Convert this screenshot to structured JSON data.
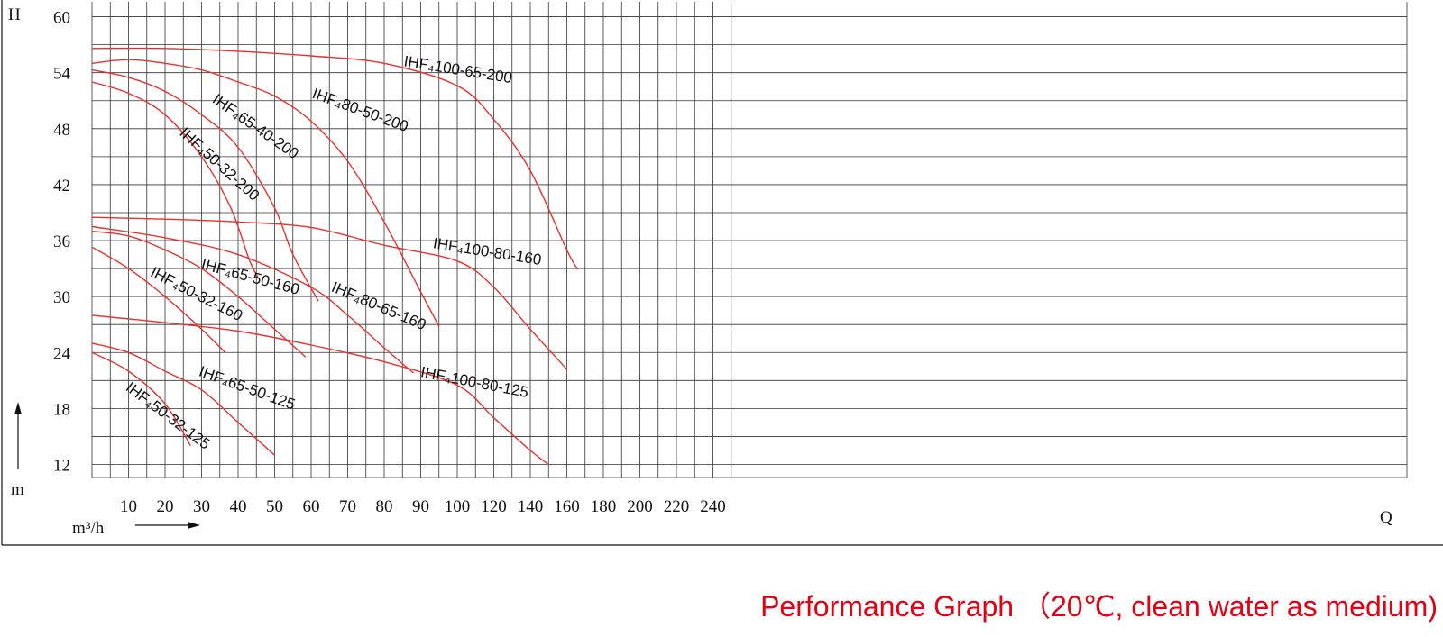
{
  "caption": "Performance Graph （20℃, clean water as medium)",
  "chart_data": {
    "type": "line",
    "y_axis": {
      "label_top": "H",
      "unit": "m",
      "range": [
        10.6,
        61.6
      ],
      "ticks": [
        12,
        18,
        24,
        30,
        36,
        42,
        48,
        54,
        60
      ]
    },
    "x_axis": {
      "label": "Q",
      "unit": "m³/h",
      "segments": [
        {
          "from": 0,
          "to": 100,
          "step": 10
        },
        {
          "from": 100,
          "to": 250,
          "step": 20
        }
      ],
      "ticks": [
        10,
        20,
        30,
        40,
        50,
        60,
        70,
        80,
        90,
        100,
        120,
        140,
        160,
        180,
        200,
        220,
        240
      ]
    },
    "grid": true,
    "series": [
      {
        "name": "IHF₄100-65-200",
        "points": [
          [
            0,
            56.6
          ],
          [
            20,
            56.6
          ],
          [
            40,
            56.3
          ],
          [
            60,
            55.8
          ],
          [
            80,
            55.0
          ],
          [
            100,
            52.6
          ],
          [
            120,
            49.0
          ],
          [
            140,
            43.5
          ],
          [
            160,
            35.0
          ],
          [
            166,
            32.9
          ]
        ]
      },
      {
        "name": "IHF₄80-50-200",
        "points": [
          [
            0,
            55.0
          ],
          [
            10,
            55.4
          ],
          [
            20,
            55.0
          ],
          [
            30,
            54.3
          ],
          [
            40,
            53.0
          ],
          [
            50,
            51.5
          ],
          [
            60,
            48.8
          ],
          [
            70,
            44.5
          ],
          [
            80,
            38.0
          ],
          [
            90,
            30.5
          ],
          [
            95,
            26.8
          ]
        ]
      },
      {
        "name": "IHF₄65-40-200",
        "points": [
          [
            0,
            54.3
          ],
          [
            10,
            53.5
          ],
          [
            20,
            52.0
          ],
          [
            30,
            49.5
          ],
          [
            40,
            46.0
          ],
          [
            50,
            39.5
          ],
          [
            55,
            34.5
          ],
          [
            62,
            29.5
          ]
        ]
      },
      {
        "name": "IHF₄50-32-200",
        "points": [
          [
            0,
            53.0
          ],
          [
            10,
            51.8
          ],
          [
            20,
            49.5
          ],
          [
            30,
            45.0
          ],
          [
            38,
            39.5
          ],
          [
            43,
            34.0
          ],
          [
            45.5,
            32.0
          ]
        ]
      },
      {
        "name": "IHF₄100-80-160",
        "points": [
          [
            0,
            38.5
          ],
          [
            20,
            38.3
          ],
          [
            40,
            38.0
          ],
          [
            60,
            37.4
          ],
          [
            80,
            35.5
          ],
          [
            100,
            33.8
          ],
          [
            120,
            31.0
          ],
          [
            140,
            26.5
          ],
          [
            160,
            22.2
          ]
        ]
      },
      {
        "name": "IHF₄65-50-160",
        "points": [
          [
            0,
            37.0
          ],
          [
            10,
            36.5
          ],
          [
            20,
            35.0
          ],
          [
            30,
            33.0
          ],
          [
            40,
            30.0
          ],
          [
            50,
            26.5
          ],
          [
            58.5,
            23.5
          ]
        ]
      },
      {
        "name": "IHF₄50-32-160",
        "points": [
          [
            0,
            35.3
          ],
          [
            10,
            33.0
          ],
          [
            20,
            30.0
          ],
          [
            30,
            26.5
          ],
          [
            36.5,
            24.0
          ]
        ]
      },
      {
        "name": "IHF₄80-65-160",
        "points": [
          [
            0,
            37.5
          ],
          [
            20,
            36.3
          ],
          [
            40,
            34.5
          ],
          [
            60,
            31.0
          ],
          [
            70,
            28.0
          ],
          [
            80,
            24.5
          ],
          [
            88,
            21.8
          ]
        ]
      },
      {
        "name": "IHF₄100-80-125",
        "points": [
          [
            0,
            28.0
          ],
          [
            20,
            27.2
          ],
          [
            40,
            26.3
          ],
          [
            60,
            24.8
          ],
          [
            80,
            23.0
          ],
          [
            100,
            20.5
          ],
          [
            120,
            17.0
          ],
          [
            140,
            13.5
          ],
          [
            150,
            12.0
          ]
        ]
      },
      {
        "name": "IHF₄65-50-125",
        "points": [
          [
            0,
            25.0
          ],
          [
            10,
            24.0
          ],
          [
            20,
            22.0
          ],
          [
            30,
            20.0
          ],
          [
            40,
            16.5
          ],
          [
            50,
            13.0
          ]
        ]
      },
      {
        "name": "IHF₄50-32-125",
        "points": [
          [
            0,
            24.0
          ],
          [
            10,
            22.0
          ],
          [
            20,
            18.5
          ],
          [
            27,
            14.0
          ]
        ]
      }
    ]
  }
}
